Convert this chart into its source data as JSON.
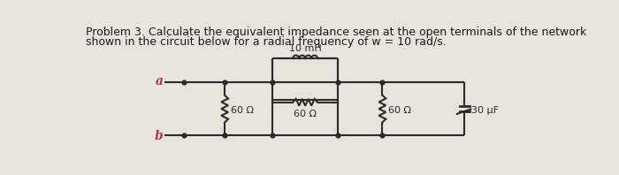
{
  "title_line1": "Problem 3. Calculate the equivalent impedance seen at the open terminals of the network",
  "title_line2": "shown in the circuit below for a radial frequency of w = 10 rad/s.",
  "bg_color": "#e8e4dc",
  "text_color": "#1a1a1a",
  "font_size_title": 9.0,
  "label_a": "a",
  "label_b": "b",
  "label_10mH": "10 mH",
  "label_60ohm_1": "60 Ω",
  "label_60ohm_2": "60 Ω",
  "label_60ohm_3": "60 Ω",
  "label_30uF": "30 μF",
  "circuit_color": "#2a2a2a",
  "label_color_ab": "#b03060"
}
